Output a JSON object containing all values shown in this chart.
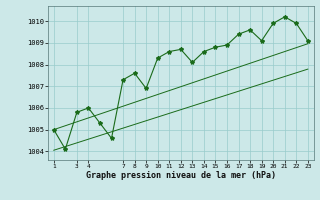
{
  "x_values": [
    1,
    2,
    3,
    4,
    5,
    6,
    7,
    8,
    9,
    10,
    11,
    12,
    13,
    14,
    15,
    16,
    17,
    18,
    19,
    20,
    21,
    22,
    23
  ],
  "y_main": [
    1005.0,
    1004.1,
    1005.8,
    1006.0,
    1005.3,
    1004.6,
    1007.3,
    1007.6,
    1006.9,
    1008.3,
    1008.6,
    1008.7,
    1008.1,
    1008.6,
    1008.8,
    1008.9,
    1009.4,
    1009.6,
    1009.1,
    1009.9,
    1010.2,
    1009.9,
    1009.1
  ],
  "y_trend_low": [
    1004.05,
    1004.22,
    1004.39,
    1004.56,
    1004.73,
    1004.9,
    1005.07,
    1005.24,
    1005.41,
    1005.58,
    1005.75,
    1005.92,
    1006.09,
    1006.26,
    1006.43,
    1006.6,
    1006.77,
    1006.94,
    1007.11,
    1007.28,
    1007.45,
    1007.62,
    1007.79
  ],
  "y_trend_high": [
    1005.0,
    1005.18,
    1005.36,
    1005.54,
    1005.72,
    1005.9,
    1006.08,
    1006.26,
    1006.44,
    1006.62,
    1006.8,
    1006.98,
    1007.16,
    1007.34,
    1007.52,
    1007.7,
    1007.88,
    1008.06,
    1008.24,
    1008.42,
    1008.6,
    1008.78,
    1008.96
  ],
  "ylim": [
    1003.6,
    1010.7
  ],
  "xlim": [
    0.5,
    23.5
  ],
  "yticks": [
    1004,
    1005,
    1006,
    1007,
    1008,
    1009,
    1010
  ],
  "xticks": [
    1,
    3,
    4,
    7,
    8,
    9,
    10,
    11,
    12,
    13,
    14,
    15,
    16,
    17,
    18,
    19,
    20,
    21,
    22,
    23
  ],
  "xlabel": "Graphe pression niveau de la mer (hPa)",
  "line_color": "#1a6b1a",
  "bg_color": "#cce8e8",
  "grid_color": "#99cccc"
}
